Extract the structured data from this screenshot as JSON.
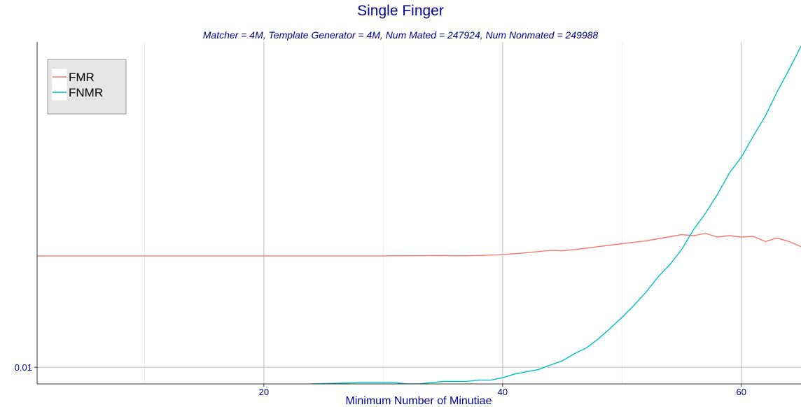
{
  "chart_data": {
    "type": "line",
    "title": "Single Finger",
    "subtitle": "Matcher = 4M,   Template Generator = 4M,   Num Mated = 247924,   Num Nonmated = 249988",
    "xlabel": "Minimum Number of Minutiae",
    "ylabel": "",
    "y_scale": "log",
    "xlim": [
      1,
      65
    ],
    "ylim": [
      0.0086,
      0.19
    ],
    "x_ticks": [
      20,
      40,
      60
    ],
    "x_tick_labels": [
      "20",
      "40",
      "60"
    ],
    "y_ticks": [
      0.01
    ],
    "y_tick_labels": [
      "0.01"
    ],
    "grid": true,
    "legend_position": "top-left",
    "series": [
      {
        "name": "FMR",
        "color": "#F8766D",
        "x": [
          1,
          10,
          20,
          25,
          30,
          35,
          36,
          38,
          40,
          42,
          44,
          45,
          46,
          48,
          50,
          52,
          54,
          55,
          56,
          57,
          58,
          59,
          60,
          61,
          62,
          63,
          64,
          65
        ],
        "y": [
          0.0274,
          0.0274,
          0.0274,
          0.0274,
          0.0274,
          0.0275,
          0.0274,
          0.0275,
          0.0277,
          0.0282,
          0.0288,
          0.0287,
          0.029,
          0.0298,
          0.0306,
          0.0314,
          0.0326,
          0.0332,
          0.0329,
          0.0336,
          0.0325,
          0.0329,
          0.0325,
          0.0327,
          0.0312,
          0.0322,
          0.0312,
          0.0298
        ]
      },
      {
        "name": "FNMR",
        "color": "#00BFC4",
        "x": [
          24,
          28,
          30,
          31,
          32,
          33,
          34,
          35,
          36,
          37,
          38,
          39,
          40,
          41,
          42,
          43,
          44,
          45,
          46,
          47,
          48,
          49,
          50,
          51,
          52,
          53,
          54,
          55,
          56,
          57,
          58,
          59,
          60,
          61,
          62,
          63,
          64,
          65
        ],
        "y": [
          0.0086,
          0.0087,
          0.0087,
          0.0087,
          0.0086,
          0.0086,
          0.0087,
          0.0088,
          0.0088,
          0.0088,
          0.0089,
          0.0089,
          0.0091,
          0.0094,
          0.0096,
          0.0098,
          0.0102,
          0.0106,
          0.0113,
          0.0119,
          0.0129,
          0.0142,
          0.0157,
          0.0175,
          0.0197,
          0.0226,
          0.0253,
          0.029,
          0.0348,
          0.0403,
          0.0478,
          0.058,
          0.067,
          0.081,
          0.097,
          0.121,
          0.148,
          0.183
        ]
      }
    ]
  }
}
